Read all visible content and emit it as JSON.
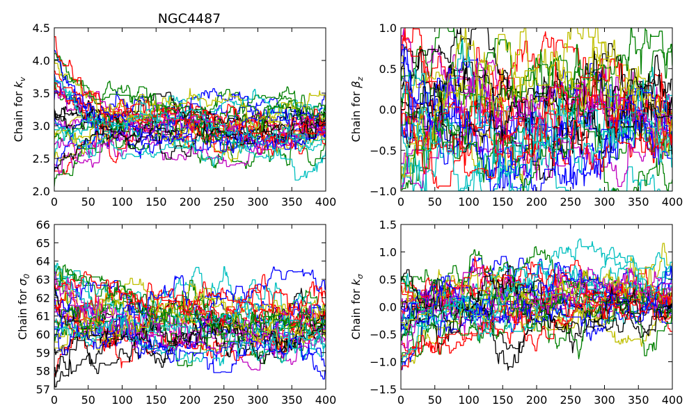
{
  "figure": {
    "title": "NGC4487"
  },
  "chart_data": [
    {
      "type": "line",
      "ylabel": "Chain for k_v",
      "ylabel_parts": {
        "text": "Chain for ",
        "symbol": "k",
        "sub": "v"
      },
      "title": "NGC4487",
      "xlim": [
        0,
        400
      ],
      "ylim": [
        2.0,
        4.5
      ],
      "xticks": [
        0,
        50,
        100,
        150,
        200,
        250,
        300,
        350,
        400
      ],
      "xtick_labels": [
        "0",
        "50",
        "100",
        "150",
        "200",
        "250",
        "300",
        "350",
        "400"
      ],
      "yticks": [
        2.0,
        2.5,
        3.0,
        3.5,
        4.0,
        4.5
      ],
      "ytick_labels": [
        "2.0",
        "2.5",
        "3.0",
        "3.5",
        "4.0",
        "4.5"
      ],
      "trace_summary": {
        "steps": 400,
        "walkers": 32,
        "center": 3.0,
        "spread": 0.22,
        "start_low": 2.0,
        "start_high": 4.4
      }
    },
    {
      "type": "line",
      "ylabel": "Chain for β_z",
      "ylabel_parts": {
        "text": "Chain for ",
        "symbol": "β",
        "sub": "z"
      },
      "xlim": [
        0,
        400
      ],
      "ylim": [
        -1.0,
        1.0
      ],
      "xticks": [
        0,
        50,
        100,
        150,
        200,
        250,
        300,
        350,
        400
      ],
      "xtick_labels": [
        "0",
        "50",
        "100",
        "150",
        "200",
        "250",
        "300",
        "350",
        "400"
      ],
      "yticks": [
        -1.0,
        -0.5,
        0.0,
        0.5,
        1.0
      ],
      "ytick_labels": [
        "−1.0",
        "−0.5",
        "0.0",
        "0.5",
        "1.0"
      ],
      "trace_summary": {
        "steps": 400,
        "walkers": 32,
        "center": -0.15,
        "spread": 0.42,
        "start_low": -1.0,
        "start_high": 0.95
      }
    },
    {
      "type": "line",
      "ylabel": "Chain for σ_0",
      "ylabel_parts": {
        "text": "Chain for ",
        "symbol": "σ",
        "sub": "0"
      },
      "xlim": [
        0,
        400
      ],
      "ylim": [
        57,
        66
      ],
      "xticks": [
        0,
        50,
        100,
        150,
        200,
        250,
        300,
        350,
        400
      ],
      "xtick_labels": [
        "0",
        "50",
        "100",
        "150",
        "200",
        "250",
        "300",
        "350",
        "400"
      ],
      "yticks": [
        57,
        58,
        59,
        60,
        61,
        62,
        63,
        64,
        65,
        66
      ],
      "ytick_labels": [
        "57",
        "58",
        "59",
        "60",
        "61",
        "62",
        "63",
        "64",
        "65",
        "66"
      ],
      "trace_summary": {
        "steps": 400,
        "walkers": 32,
        "center": 60.7,
        "spread": 1.0,
        "start_low": 57.3,
        "start_high": 64.2
      }
    },
    {
      "type": "line",
      "ylabel": "Chain for k_σ",
      "ylabel_parts": {
        "text": "Chain for ",
        "symbol": "k",
        "sub": "σ"
      },
      "xlim": [
        0,
        400
      ],
      "ylim": [
        -1.5,
        1.5
      ],
      "xticks": [
        0,
        50,
        100,
        150,
        200,
        250,
        300,
        350,
        400
      ],
      "xtick_labels": [
        "0",
        "50",
        "100",
        "150",
        "200",
        "250",
        "300",
        "350",
        "400"
      ],
      "yticks": [
        -1.5,
        -1.0,
        -0.5,
        0.0,
        0.5,
        1.0,
        1.5
      ],
      "ytick_labels": [
        "−1.5",
        "−1.0",
        "−0.5",
        "0.0",
        "0.5",
        "1.0",
        "1.5"
      ],
      "trace_summary": {
        "steps": 400,
        "walkers": 32,
        "center": 0.15,
        "spread": 0.35,
        "start_low": -1.25,
        "start_high": 0.7
      }
    }
  ],
  "series_colors": [
    "#0000ff",
    "#008000",
    "#ff0000",
    "#00bfbf",
    "#bf00bf",
    "#bfbf00",
    "#000000"
  ]
}
